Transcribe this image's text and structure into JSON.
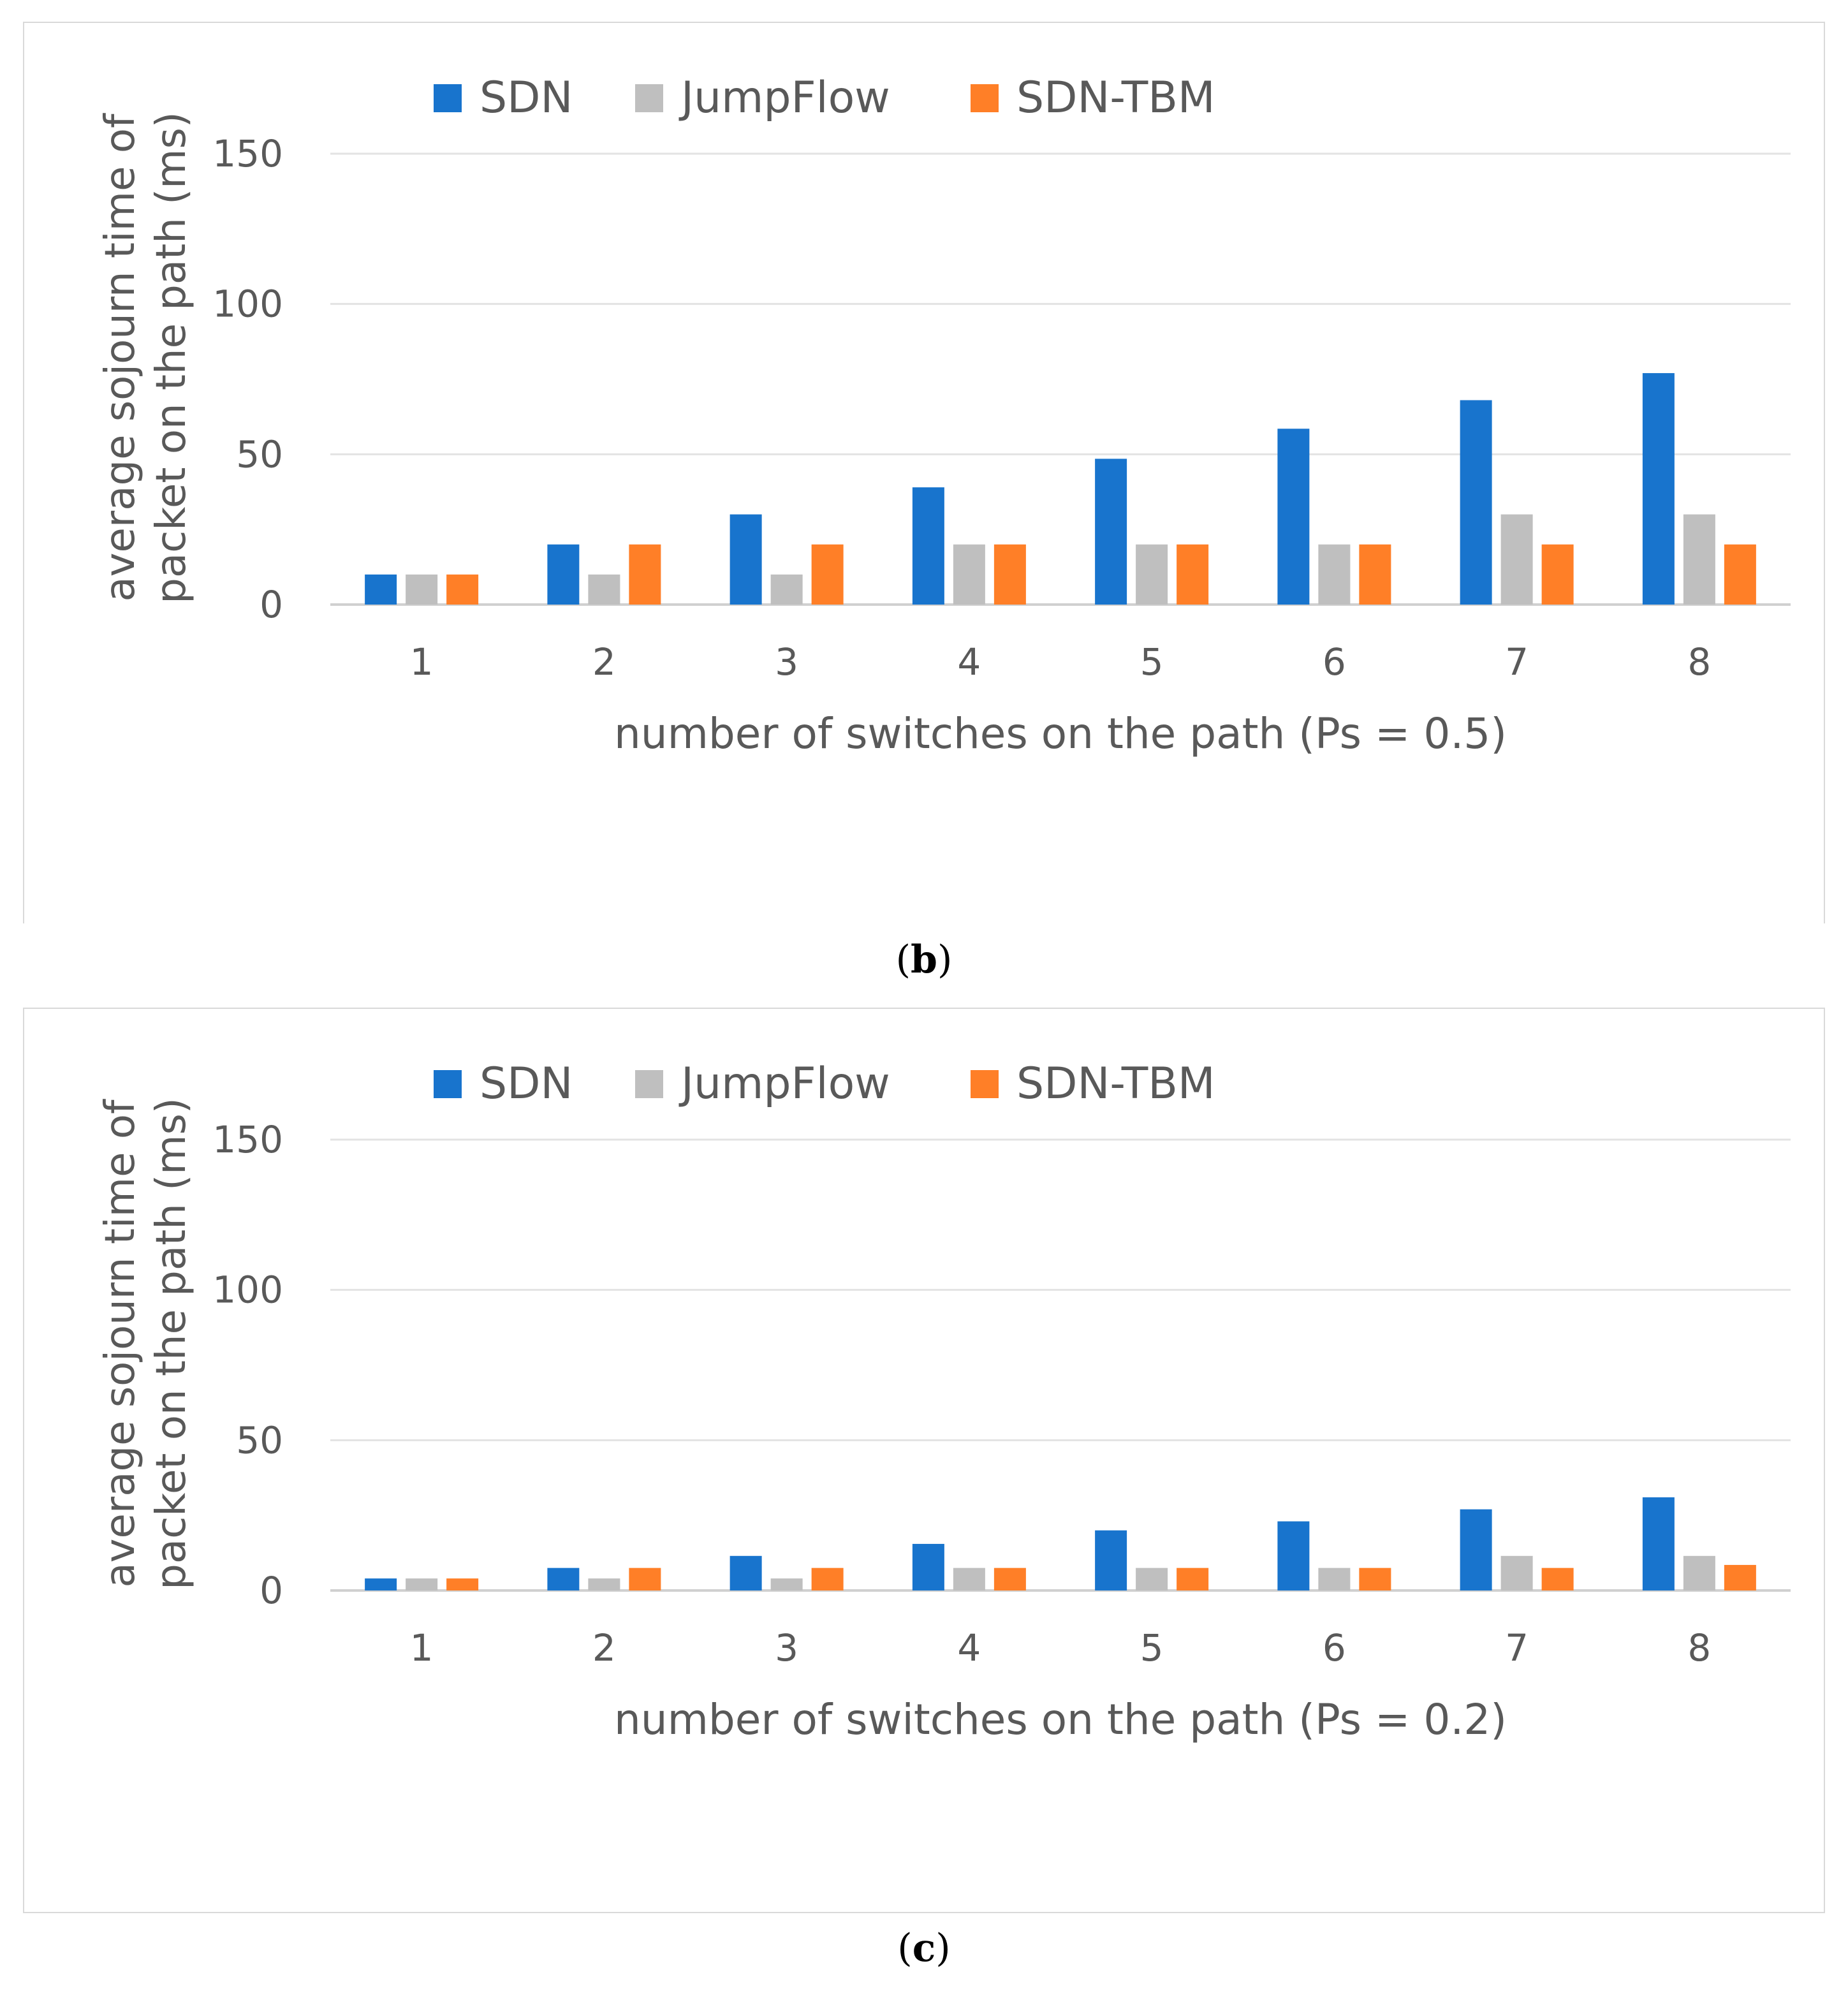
{
  "chart_data": [
    {
      "panel": "b",
      "type": "bar",
      "title": "",
      "xlabel": "number of switches on the path (Ps = 0.5)",
      "ylabel_line1": "average sojourn time of",
      "ylabel_line2": "packet on the path (ms)",
      "ylim": [
        0,
        150
      ],
      "yticks": [
        0,
        50,
        100,
        150
      ],
      "grid": true,
      "legend_position": "top",
      "categories": [
        "1",
        "2",
        "3",
        "4",
        "5",
        "6",
        "7",
        "8"
      ],
      "series": [
        {
          "name": "SDN",
          "color": "#1874CD",
          "values": [
            10,
            20,
            30,
            39,
            48.5,
            58.5,
            68,
            77
          ]
        },
        {
          "name": "JumpFlow",
          "color": "#BFBFBF",
          "values": [
            10,
            10,
            10,
            20,
            20,
            20,
            30,
            30
          ]
        },
        {
          "name": "SDN-TBM",
          "color": "#FF7F27",
          "values": [
            10,
            20,
            20,
            20,
            20,
            20,
            20,
            20
          ]
        }
      ]
    },
    {
      "panel": "c",
      "type": "bar",
      "title": "",
      "xlabel": "number of switches on the path (Ps = 0.2)",
      "ylabel_line1": "average sojourn time of",
      "ylabel_line2": "packet on the path (ms)",
      "ylim": [
        0,
        150
      ],
      "yticks": [
        0,
        50,
        100,
        150
      ],
      "grid": true,
      "legend_position": "top",
      "categories": [
        "1",
        "2",
        "3",
        "4",
        "5",
        "6",
        "7",
        "8"
      ],
      "series": [
        {
          "name": "SDN",
          "color": "#1874CD",
          "values": [
            4,
            7.5,
            11.5,
            15.5,
            20,
            23,
            27,
            31
          ]
        },
        {
          "name": "JumpFlow",
          "color": "#BFBFBF",
          "values": [
            4,
            4,
            4,
            7.5,
            7.5,
            7.5,
            11.5,
            11.5
          ]
        },
        {
          "name": "SDN-TBM",
          "color": "#FF7F27",
          "values": [
            4,
            7.5,
            7.5,
            7.5,
            7.5,
            7.5,
            7.5,
            8.5
          ]
        }
      ]
    }
  ],
  "captions": {
    "b_open": "(",
    "b_letter": "b",
    "b_close": ")",
    "c_open": "(",
    "c_letter": "c",
    "c_close": ")"
  }
}
